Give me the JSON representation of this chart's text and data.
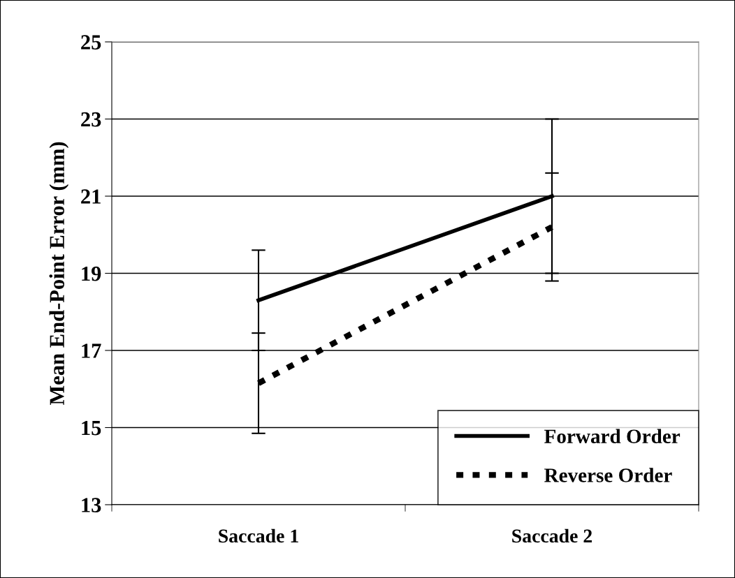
{
  "chart_data": {
    "type": "line",
    "ylabel": "Mean End-Point Error (mm)",
    "categories": [
      "Saccade 1",
      "Saccade 2"
    ],
    "series": [
      {
        "name": "Forward Order",
        "color": "#000000",
        "values": [
          18.3,
          21.0
        ],
        "errors": [
          1.3,
          2.0
        ],
        "line_style": "solid"
      },
      {
        "name": "Reverse Order",
        "color": "#000000",
        "values": [
          16.15,
          20.2
        ],
        "errors": [
          1.3,
          1.4
        ],
        "line_style": "dotted"
      }
    ],
    "ylim": [
      13,
      25
    ],
    "yticks": [
      13,
      15,
      17,
      19,
      21,
      23,
      25
    ],
    "grid": "y",
    "legend": "bottom right",
    "marker": "none"
  }
}
